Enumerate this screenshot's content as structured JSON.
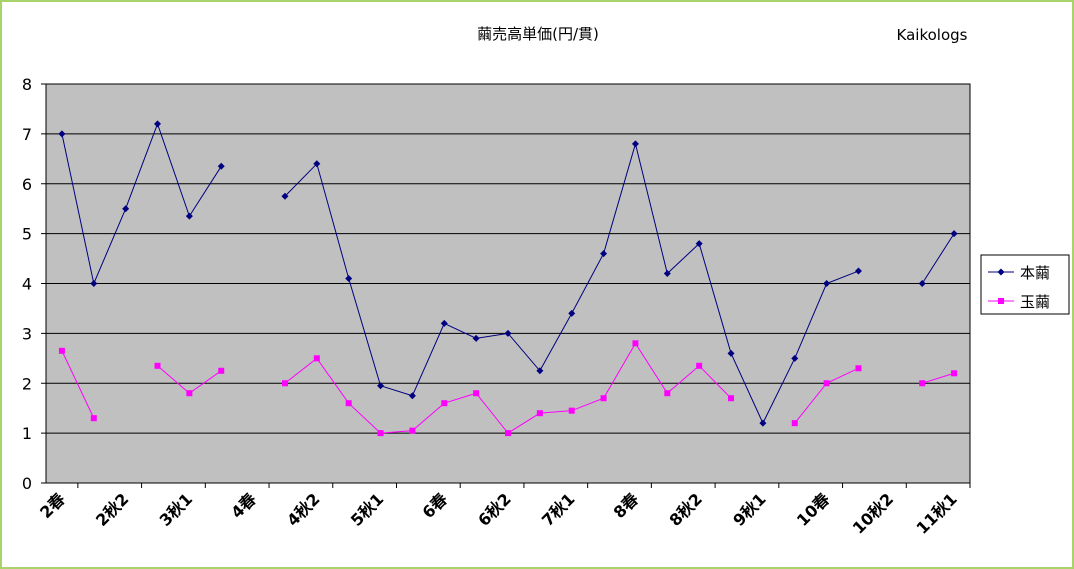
{
  "chart_data": {
    "type": "line",
    "title": "繭売高単価(円/貫)",
    "watermark": "Kaikologs",
    "ylim": [
      0,
      8
    ],
    "yticks": [
      "0",
      "1",
      "2",
      "3",
      "4",
      "5",
      "6",
      "7",
      "8"
    ],
    "grid": true,
    "plot_background": "#c0c0c0",
    "legend_position": "right",
    "x_labels": [
      "2春",
      "2秋2",
      "3秋1",
      "4春",
      "4秋2",
      "5秋1",
      "6春",
      "6秋2",
      "7秋1",
      "8春",
      "8秋2",
      "9秋1",
      "10春",
      "10秋2",
      "11秋1"
    ],
    "series": [
      {
        "name": "本繭",
        "color": "#000080",
        "marker": "diamond",
        "values": [
          7.0,
          4.0,
          5.5,
          7.2,
          5.35,
          6.35,
          null,
          5.75,
          6.4,
          4.1,
          1.95,
          1.75,
          3.2,
          2.9,
          3.0,
          2.25,
          3.4,
          4.6,
          6.8,
          4.2,
          4.8,
          2.6,
          1.2,
          2.5,
          4.0,
          4.25,
          null,
          4.0,
          5.0
        ]
      },
      {
        "name": "玉繭",
        "color": "#ff00ff",
        "marker": "square",
        "values": [
          2.65,
          1.3,
          null,
          2.35,
          1.8,
          2.25,
          null,
          2.0,
          2.5,
          1.6,
          1.0,
          1.05,
          1.6,
          1.8,
          1.0,
          1.4,
          1.45,
          1.7,
          2.8,
          1.8,
          2.35,
          1.7,
          null,
          1.2,
          2.0,
          2.3,
          null,
          2.0,
          2.2
        ]
      }
    ]
  }
}
